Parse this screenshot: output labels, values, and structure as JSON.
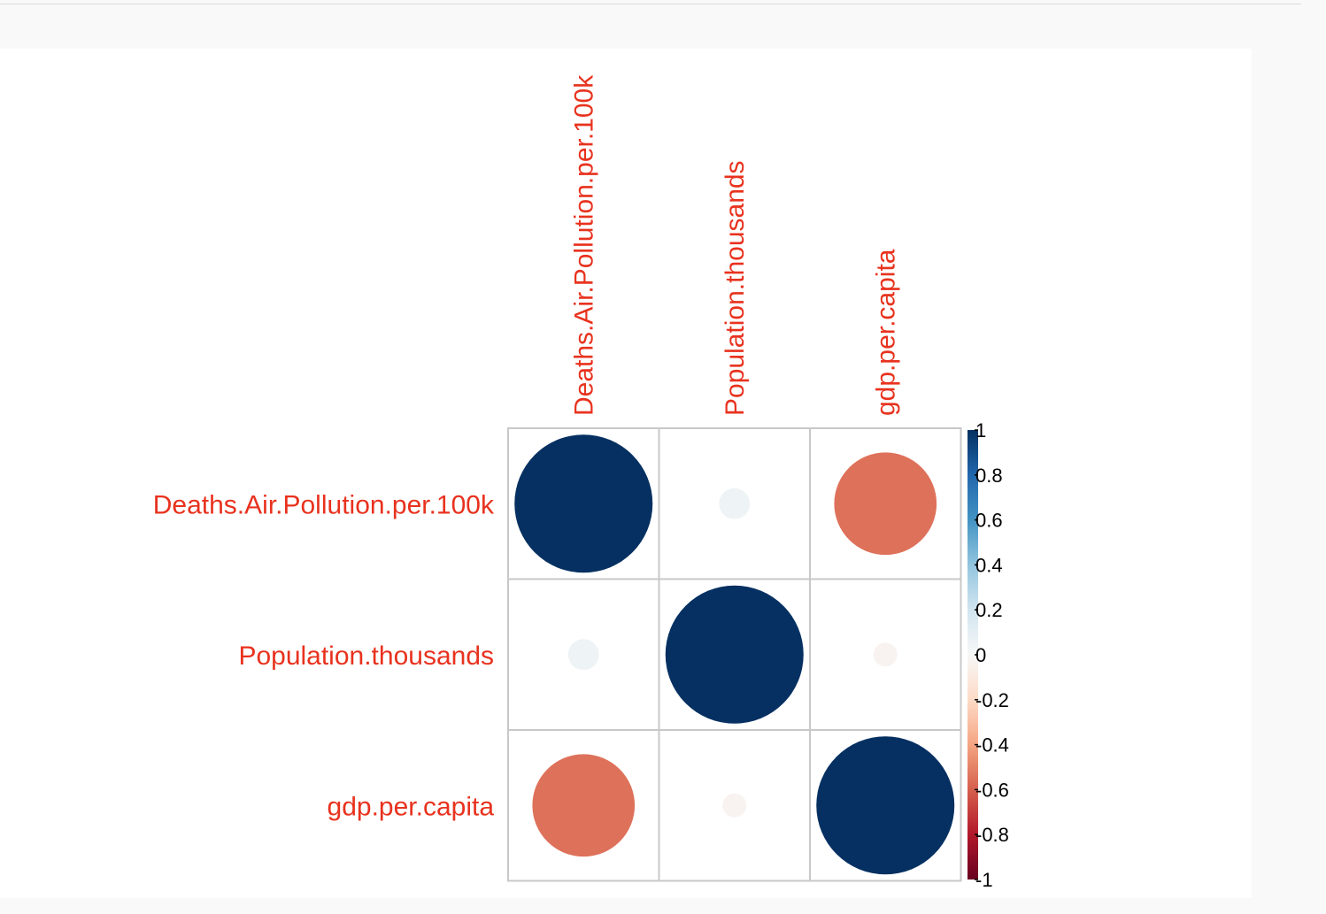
{
  "chart_data": {
    "type": "heatmap",
    "subtype": "correlation-circles",
    "variables": [
      "Deaths.Air.Pollution.per.100k",
      "Population.thousands",
      "gdp.per.capita"
    ],
    "matrix": [
      [
        1.0,
        0.05,
        -0.55
      ],
      [
        0.05,
        1.0,
        -0.03
      ],
      [
        -0.55,
        -0.03,
        1.0
      ]
    ],
    "colorbar": {
      "range": [
        -1,
        1
      ],
      "ticks": [
        "1",
        "0.8",
        "0.6",
        "0.4",
        "0.2",
        "0",
        "-0.2",
        "-0.4",
        "-0.6",
        "-0.8",
        "-1"
      ]
    },
    "colors": {
      "label": "#e8321e",
      "grid": "#c8c8c8",
      "high": "#053061",
      "mid": "#f7f7f7",
      "low": "#67001f"
    }
  }
}
